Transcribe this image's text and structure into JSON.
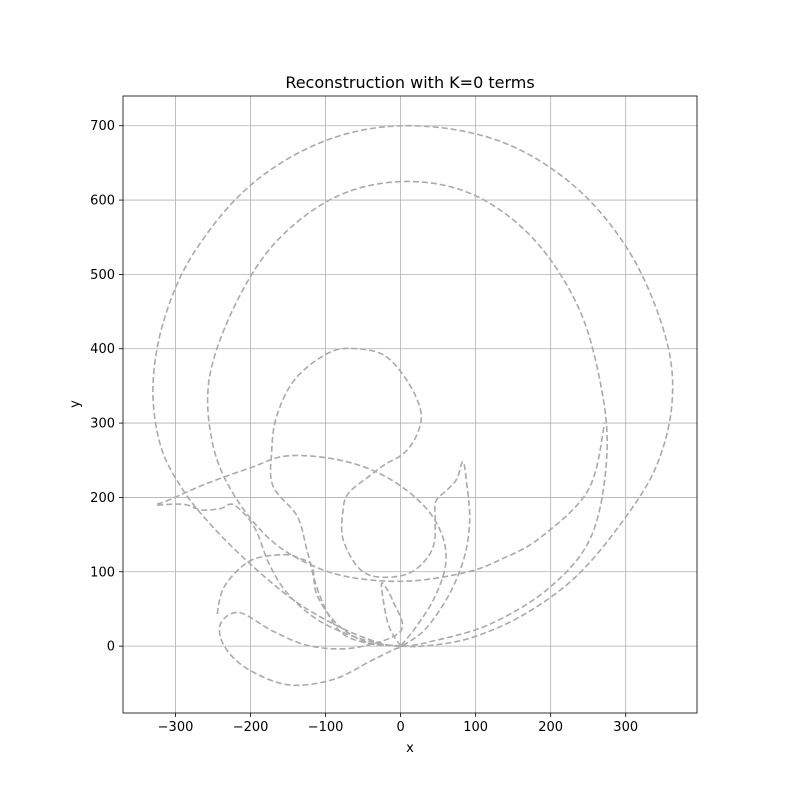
{
  "chart_data": {
    "type": "line",
    "title": "Reconstruction with K=0 terms",
    "xlabel": "x",
    "ylabel": "y",
    "xlim": [
      -370,
      395
    ],
    "ylim": [
      -90,
      740
    ],
    "xticks": [
      -300,
      -200,
      -100,
      0,
      100,
      200,
      300
    ],
    "yticks": [
      0,
      100,
      200,
      300,
      400,
      500,
      600,
      700
    ],
    "xtick_labels": [
      "−300",
      "−200",
      "−100",
      "0",
      "100",
      "200",
      "300"
    ],
    "ytick_labels": [
      "0",
      "100",
      "200",
      "300",
      "400",
      "500",
      "600",
      "700"
    ],
    "grid": true,
    "legend": "none",
    "line_color": "#aaaaaa",
    "line_style": "dashed",
    "series": [
      {
        "points": [
          [
            0,
            0
          ],
          [
            30,
            0
          ],
          [
            90,
            10
          ],
          [
            160,
            40
          ],
          [
            230,
            90
          ],
          [
            290,
            160
          ],
          [
            340,
            240
          ],
          [
            362,
            330
          ],
          [
            352,
            420
          ],
          [
            305,
            530
          ],
          [
            230,
            620
          ],
          [
            130,
            680
          ],
          [
            10,
            700
          ],
          [
            -100,
            680
          ],
          [
            -200,
            620
          ],
          [
            -275,
            530
          ],
          [
            -315,
            440
          ],
          [
            -330,
            350
          ],
          [
            -320,
            270
          ],
          [
            -290,
            210
          ],
          [
            -250,
            160
          ],
          [
            -200,
            110
          ],
          [
            -140,
            60
          ],
          [
            -80,
            25
          ],
          [
            -30,
            5
          ],
          [
            0,
            0
          ],
          [
            40,
            6
          ],
          [
            120,
            30
          ],
          [
            200,
            80
          ],
          [
            255,
            150
          ],
          [
            275,
            260
          ],
          [
            265,
            360
          ],
          [
            235,
            460
          ],
          [
            175,
            550
          ],
          [
            95,
            608
          ],
          [
            5,
            625
          ],
          [
            -85,
            605
          ],
          [
            -165,
            545
          ],
          [
            -220,
            460
          ],
          [
            -255,
            360
          ],
          [
            -250,
            270
          ],
          [
            -220,
            200
          ],
          [
            -170,
            140
          ],
          [
            -110,
            105
          ],
          [
            -50,
            90
          ],
          [
            20,
            88
          ],
          [
            90,
            100
          ],
          [
            130,
            115
          ],
          [
            185,
            145
          ],
          [
            250,
            210
          ],
          [
            272,
            300
          ]
        ]
      },
      {
        "points": [
          [
            0,
            0
          ],
          [
            -20,
            2
          ],
          [
            -60,
            12
          ],
          [
            -110,
            35
          ],
          [
            -150,
            70
          ],
          [
            -175,
            110
          ],
          [
            -195,
            160
          ],
          [
            -222,
            190
          ],
          [
            -240,
            185
          ],
          [
            -265,
            183
          ],
          [
            -285,
            190
          ],
          [
            -300,
            191
          ],
          [
            -326,
            190
          ],
          [
            -310,
            196
          ],
          [
            -260,
            218
          ],
          [
            -200,
            240
          ],
          [
            -150,
            256
          ],
          [
            -80,
            250
          ],
          [
            -20,
            228
          ],
          [
            30,
            190
          ],
          [
            55,
            150
          ],
          [
            60,
            110
          ],
          [
            45,
            65
          ],
          [
            20,
            25
          ],
          [
            0,
            0
          ]
        ]
      },
      {
        "points": [
          [
            0,
            0
          ],
          [
            -40,
            3
          ],
          [
            -75,
            15
          ],
          [
            -95,
            40
          ],
          [
            -112,
            80
          ],
          [
            -125,
            130
          ],
          [
            -138,
            175
          ],
          [
            -170,
            215
          ],
          [
            -172,
            260
          ],
          [
            -165,
            310
          ],
          [
            -140,
            360
          ],
          [
            -95,
            395
          ],
          [
            -58,
            400
          ],
          [
            -20,
            390
          ],
          [
            10,
            355
          ],
          [
            27,
            315
          ],
          [
            22,
            285
          ],
          [
            5,
            260
          ],
          [
            -20,
            245
          ],
          [
            -40,
            230
          ],
          [
            -70,
            205
          ],
          [
            -77,
            180
          ],
          [
            -77,
            145
          ],
          [
            -60,
            110
          ],
          [
            -40,
            95
          ],
          [
            -10,
            93
          ],
          [
            15,
            100
          ],
          [
            35,
            118
          ],
          [
            45,
            140
          ],
          [
            46,
            170
          ],
          [
            47,
            195
          ],
          [
            62,
            210
          ],
          [
            75,
            225
          ],
          [
            83,
            248
          ],
          [
            88,
            220
          ],
          [
            92,
            170
          ],
          [
            85,
            120
          ],
          [
            65,
            70
          ],
          [
            35,
            25
          ],
          [
            10,
            5
          ],
          [
            0,
            0
          ]
        ]
      },
      {
        "points": [
          [
            0,
            0
          ],
          [
            -15,
            25
          ],
          [
            -22,
            55
          ],
          [
            -25,
            85
          ],
          [
            -10,
            60
          ],
          [
            0,
            20
          ],
          [
            -60,
            -2
          ],
          [
            -120,
            0
          ],
          [
            -170,
            20
          ],
          [
            -215,
            45
          ],
          [
            -240,
            30
          ],
          [
            -235,
            0
          ],
          [
            -205,
            -30
          ],
          [
            -150,
            -52
          ],
          [
            -90,
            -45
          ],
          [
            -40,
            -20
          ],
          [
            -10,
            -5
          ],
          [
            0,
            0
          ],
          [
            -45,
            5
          ],
          [
            -85,
            30
          ],
          [
            -112,
            70
          ],
          [
            -118,
            108
          ],
          [
            -135,
            118
          ],
          [
            -155,
            123
          ],
          [
            -200,
            115
          ],
          [
            -235,
            80
          ],
          [
            -245,
            40
          ]
        ]
      }
    ]
  }
}
